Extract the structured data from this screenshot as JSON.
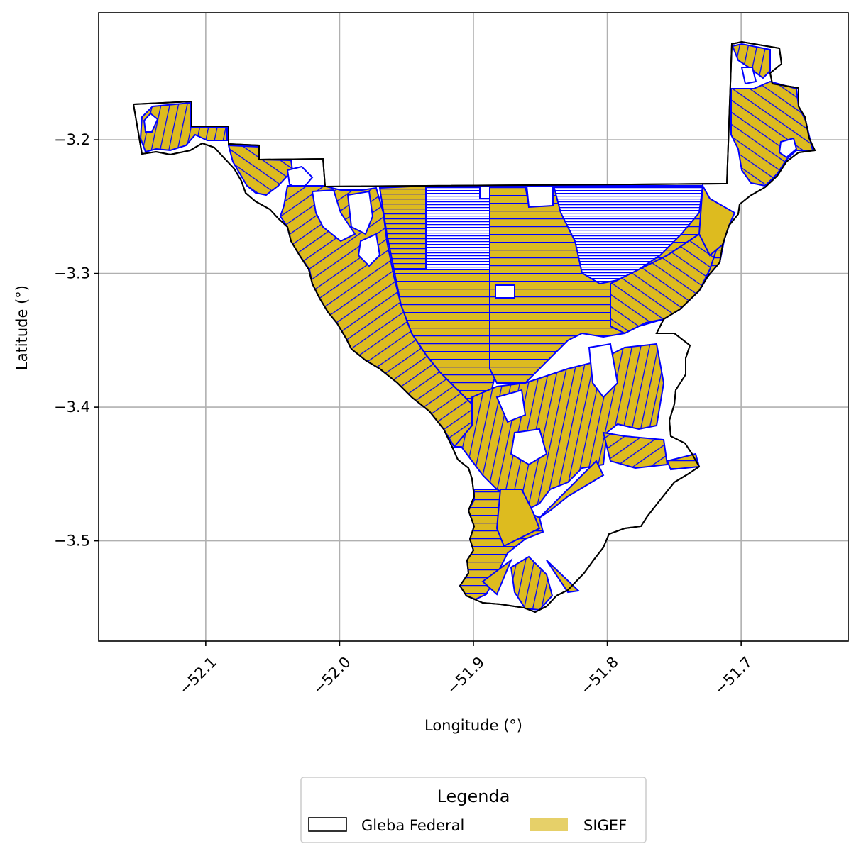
{
  "chart_data": {
    "type": "map",
    "title": "",
    "xlabel": "Longitude (°)",
    "ylabel": "Latitude (°)",
    "xlim": [
      -52.18,
      -51.62
    ],
    "ylim": [
      -3.575,
      -3.105
    ],
    "x_ticks": [
      {
        "value": -52.1,
        "label": "−52.1"
      },
      {
        "value": -52.0,
        "label": "−52.0"
      },
      {
        "value": -51.9,
        "label": "−51.9"
      },
      {
        "value": -51.8,
        "label": "−51.8"
      },
      {
        "value": -51.7,
        "label": "−51.7"
      }
    ],
    "y_ticks": [
      {
        "value": -3.2,
        "label": "−3.2"
      },
      {
        "value": -3.3,
        "label": "−3.3"
      },
      {
        "value": -3.4,
        "label": "−3.4"
      },
      {
        "value": -3.5,
        "label": "−3.5"
      }
    ],
    "grid": true,
    "legend": {
      "title": "Legenda",
      "placement": "bottom-center",
      "entries": [
        {
          "label": "Gleba Federal",
          "facecolor": "#ffffff",
          "edgecolor": "#000000"
        },
        {
          "label": "SIGEF",
          "facecolor": "#e6d069",
          "edgecolor": "#e6d069"
        }
      ]
    },
    "layers": [
      {
        "name": "Gleba Federal",
        "facecolor": "#ffffff",
        "edgecolor": "#000000"
      },
      {
        "name": "SIGEF",
        "facecolor": "#ddbb1f",
        "edgecolor": "#0000ff"
      }
    ]
  }
}
